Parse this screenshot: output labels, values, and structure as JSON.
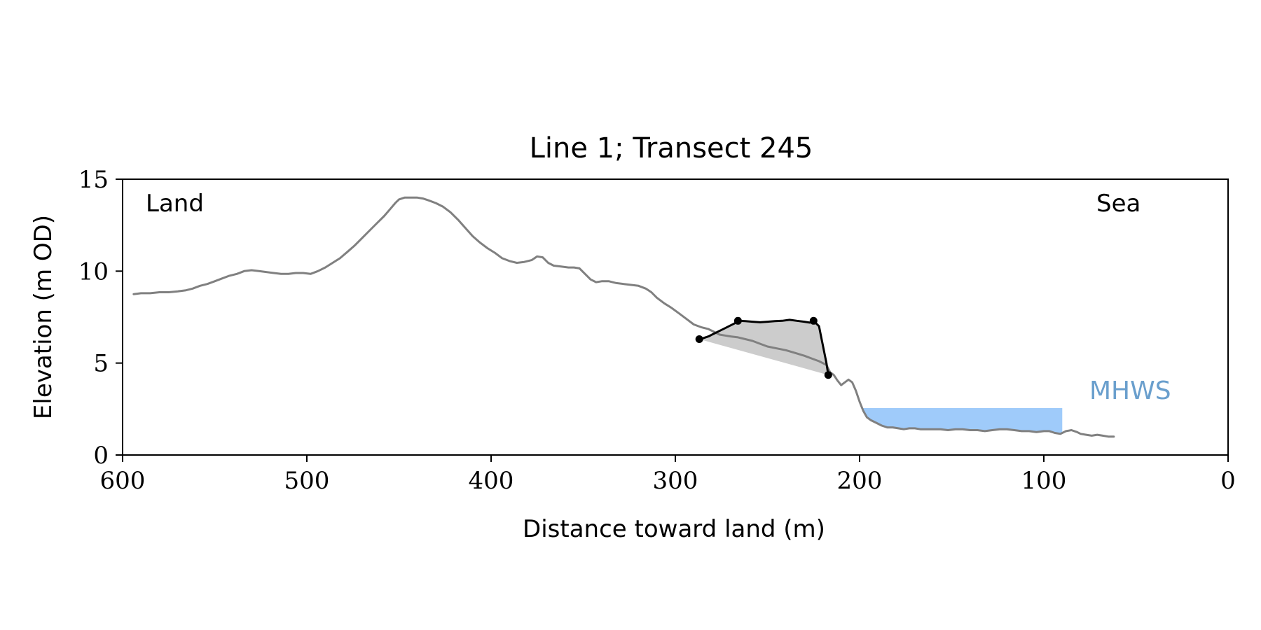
{
  "chart_data": {
    "type": "line",
    "title": "Line 1; Transect 245",
    "xlabel": "Distance toward land (m)",
    "ylabel": "Elevation (m OD)",
    "xlim": [
      600,
      0
    ],
    "ylim": [
      0,
      15
    ],
    "x_reversed": true,
    "xticks": [
      600,
      500,
      400,
      300,
      200,
      100,
      0
    ],
    "yticks": [
      0,
      5,
      10,
      15
    ],
    "grid": false,
    "annotations": {
      "land_label": "Land",
      "sea_label": "Sea",
      "mhws_label": "MHWS"
    },
    "colors": {
      "profile": "#808080",
      "feature": "#000000",
      "fill": "#cccccc",
      "mhws": "#9fcbfa",
      "mhws_text": "#6a9fcd",
      "axes": "#000000"
    },
    "series": [
      {
        "role": "profile",
        "points": [
          [
            594,
            8.75
          ],
          [
            590,
            8.8
          ],
          [
            585,
            8.8
          ],
          [
            580,
            8.85
          ],
          [
            575,
            8.85
          ],
          [
            570,
            8.9
          ],
          [
            566,
            8.95
          ],
          [
            562,
            9.05
          ],
          [
            558,
            9.2
          ],
          [
            554,
            9.3
          ],
          [
            550,
            9.45
          ],
          [
            546,
            9.6
          ],
          [
            542,
            9.75
          ],
          [
            538,
            9.85
          ],
          [
            534,
            10.0
          ],
          [
            530,
            10.05
          ],
          [
            526,
            10.0
          ],
          [
            522,
            9.95
          ],
          [
            518,
            9.9
          ],
          [
            514,
            9.85
          ],
          [
            510,
            9.85
          ],
          [
            506,
            9.9
          ],
          [
            502,
            9.9
          ],
          [
            498,
            9.85
          ],
          [
            494,
            10.0
          ],
          [
            490,
            10.2
          ],
          [
            486,
            10.45
          ],
          [
            482,
            10.7
          ],
          [
            478,
            11.05
          ],
          [
            474,
            11.4
          ],
          [
            470,
            11.8
          ],
          [
            466,
            12.2
          ],
          [
            462,
            12.6
          ],
          [
            458,
            13.0
          ],
          [
            455,
            13.35
          ],
          [
            452,
            13.7
          ],
          [
            450,
            13.9
          ],
          [
            447,
            14.0
          ],
          [
            443,
            14.0
          ],
          [
            440,
            14.0
          ],
          [
            437,
            13.95
          ],
          [
            434,
            13.85
          ],
          [
            430,
            13.7
          ],
          [
            426,
            13.5
          ],
          [
            422,
            13.2
          ],
          [
            418,
            12.8
          ],
          [
            414,
            12.35
          ],
          [
            410,
            11.9
          ],
          [
            406,
            11.55
          ],
          [
            402,
            11.25
          ],
          [
            398,
            11.0
          ],
          [
            394,
            10.7
          ],
          [
            390,
            10.55
          ],
          [
            386,
            10.45
          ],
          [
            382,
            10.5
          ],
          [
            378,
            10.6
          ],
          [
            375,
            10.8
          ],
          [
            372,
            10.75
          ],
          [
            369,
            10.45
          ],
          [
            366,
            10.3
          ],
          [
            362,
            10.25
          ],
          [
            358,
            10.2
          ],
          [
            355,
            10.2
          ],
          [
            352,
            10.15
          ],
          [
            349,
            9.85
          ],
          [
            346,
            9.55
          ],
          [
            343,
            9.4
          ],
          [
            340,
            9.45
          ],
          [
            336,
            9.45
          ],
          [
            332,
            9.35
          ],
          [
            328,
            9.3
          ],
          [
            324,
            9.25
          ],
          [
            320,
            9.2
          ],
          [
            316,
            9.05
          ],
          [
            313,
            8.85
          ],
          [
            310,
            8.55
          ],
          [
            306,
            8.25
          ],
          [
            302,
            8.0
          ],
          [
            298,
            7.7
          ],
          [
            294,
            7.4
          ],
          [
            290,
            7.1
          ],
          [
            286,
            6.95
          ],
          [
            282,
            6.85
          ],
          [
            279,
            6.7
          ],
          [
            276,
            6.55
          ],
          [
            273,
            6.5
          ],
          [
            270,
            6.45
          ],
          [
            266,
            6.4
          ],
          [
            262,
            6.3
          ],
          [
            258,
            6.2
          ],
          [
            254,
            6.05
          ],
          [
            250,
            5.9
          ],
          [
            245,
            5.8
          ],
          [
            240,
            5.7
          ],
          [
            235,
            5.55
          ],
          [
            230,
            5.4
          ],
          [
            226,
            5.25
          ],
          [
            222,
            5.1
          ],
          [
            218,
            4.9
          ],
          [
            216,
            4.5
          ],
          [
            214,
            4.35
          ],
          [
            212,
            4.05
          ],
          [
            210,
            3.8
          ],
          [
            208,
            3.95
          ],
          [
            206,
            4.1
          ],
          [
            204,
            3.95
          ],
          [
            202,
            3.5
          ],
          [
            200,
            2.9
          ],
          [
            198,
            2.4
          ],
          [
            196,
            2.05
          ],
          [
            194,
            1.9
          ],
          [
            191,
            1.75
          ],
          [
            188,
            1.6
          ],
          [
            185,
            1.5
          ],
          [
            182,
            1.5
          ],
          [
            179,
            1.45
          ],
          [
            176,
            1.4
          ],
          [
            173,
            1.45
          ],
          [
            170,
            1.45
          ],
          [
            167,
            1.4
          ],
          [
            164,
            1.4
          ],
          [
            160,
            1.4
          ],
          [
            156,
            1.4
          ],
          [
            152,
            1.35
          ],
          [
            148,
            1.4
          ],
          [
            144,
            1.4
          ],
          [
            140,
            1.35
          ],
          [
            136,
            1.35
          ],
          [
            132,
            1.3
          ],
          [
            128,
            1.35
          ],
          [
            124,
            1.4
          ],
          [
            120,
            1.4
          ],
          [
            116,
            1.35
          ],
          [
            112,
            1.3
          ],
          [
            108,
            1.3
          ],
          [
            104,
            1.25
          ],
          [
            100,
            1.3
          ],
          [
            97,
            1.3
          ],
          [
            94,
            1.2
          ],
          [
            91,
            1.15
          ],
          [
            88,
            1.3
          ],
          [
            85,
            1.35
          ],
          [
            82,
            1.25
          ],
          [
            80,
            1.15
          ],
          [
            77,
            1.1
          ],
          [
            74,
            1.05
          ],
          [
            71,
            1.1
          ],
          [
            68,
            1.05
          ],
          [
            65,
            1.0
          ],
          [
            62,
            1.0
          ]
        ]
      },
      {
        "role": "feature",
        "points": [
          [
            287,
            6.3
          ],
          [
            285,
            6.35
          ],
          [
            282,
            6.45
          ],
          [
            279,
            6.6
          ],
          [
            276,
            6.75
          ],
          [
            273,
            6.9
          ],
          [
            270,
            7.05
          ],
          [
            268,
            7.15
          ],
          [
            266,
            7.3
          ],
          [
            262,
            7.28
          ],
          [
            258,
            7.25
          ],
          [
            254,
            7.22
          ],
          [
            250,
            7.25
          ],
          [
            246,
            7.28
          ],
          [
            242,
            7.3
          ],
          [
            238,
            7.35
          ],
          [
            234,
            7.3
          ],
          [
            230,
            7.25
          ],
          [
            227,
            7.2
          ],
          [
            225,
            7.3
          ],
          [
            222,
            7.0
          ],
          [
            220,
            6.0
          ],
          [
            218,
            5.0
          ],
          [
            217,
            4.35
          ]
        ]
      }
    ],
    "feature_markers": [
      [
        287,
        6.3
      ],
      [
        266,
        7.3
      ],
      [
        225,
        7.3
      ],
      [
        217,
        4.35
      ]
    ],
    "mhws_band": {
      "x_start": 198,
      "x_end": 90,
      "y_top": 2.55
    }
  }
}
